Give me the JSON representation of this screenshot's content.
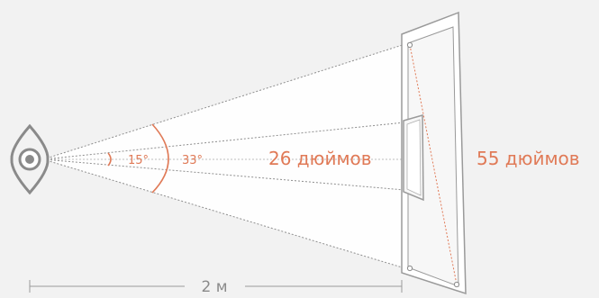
{
  "labels": {
    "angle_small": "15°",
    "angle_large": "33°",
    "screen_small": "26 дюймов",
    "screen_large": "55 дюймов",
    "distance": "2 м"
  },
  "colors": {
    "accent": "#e07a57",
    "outline": "#9a9a9a",
    "cone_fill": "#ffffff",
    "background": "#f2f2f2"
  },
  "icons": {
    "viewer": "eye-icon"
  }
}
